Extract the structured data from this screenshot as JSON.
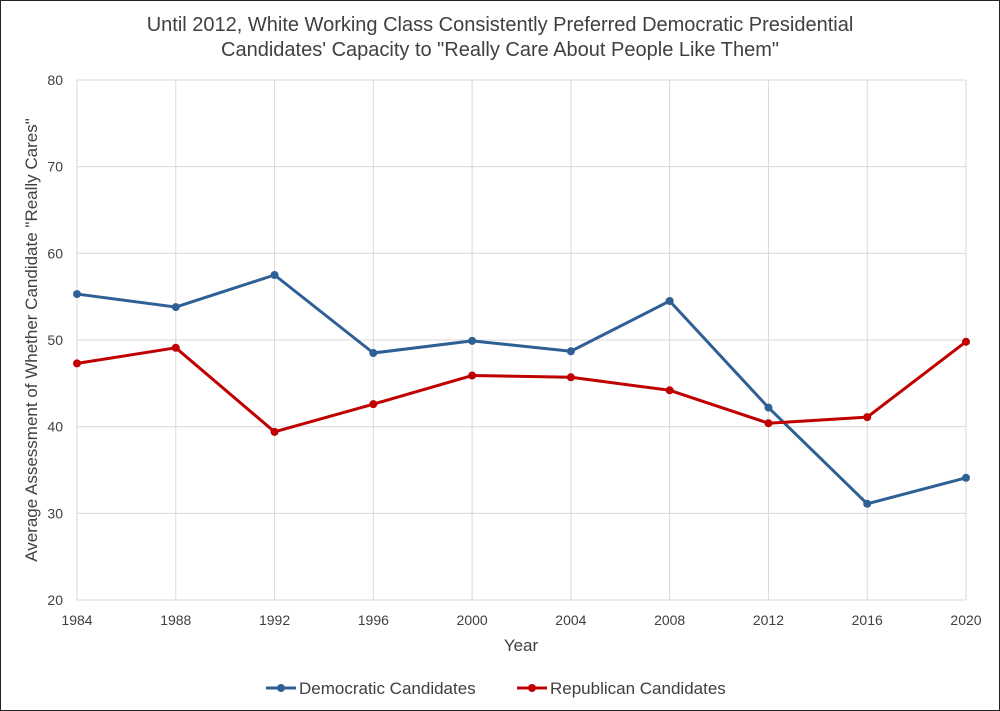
{
  "chart_data": {
    "type": "line",
    "title_lines": [
      "Until 2012, White Working Class Consistently Preferred Democratic Presidential",
      "Candidates' Capacity to \"Really Care About People Like Them\""
    ],
    "xlabel": "Year",
    "ylabel": "Average Assessment of Whether Candidate \"Really Cares\"",
    "categories": [
      "1984",
      "1988",
      "1992",
      "1996",
      "2000",
      "2004",
      "2008",
      "2012",
      "2016",
      "2020"
    ],
    "ylim": [
      20,
      80
    ],
    "yticks": [
      20,
      30,
      40,
      50,
      60,
      70,
      80
    ],
    "grid": true,
    "legend_position": "bottom",
    "series": [
      {
        "name": "Democratic Candidates",
        "color": "#2E5F95",
        "values": [
          55.3,
          53.8,
          57.5,
          48.5,
          49.9,
          48.7,
          54.5,
          42.2,
          31.1,
          34.1
        ]
      },
      {
        "name": "Republican Candidates",
        "color": "#C00000",
        "values": [
          47.3,
          49.1,
          39.4,
          42.6,
          45.9,
          45.7,
          44.2,
          40.4,
          41.1,
          49.8
        ]
      }
    ]
  }
}
